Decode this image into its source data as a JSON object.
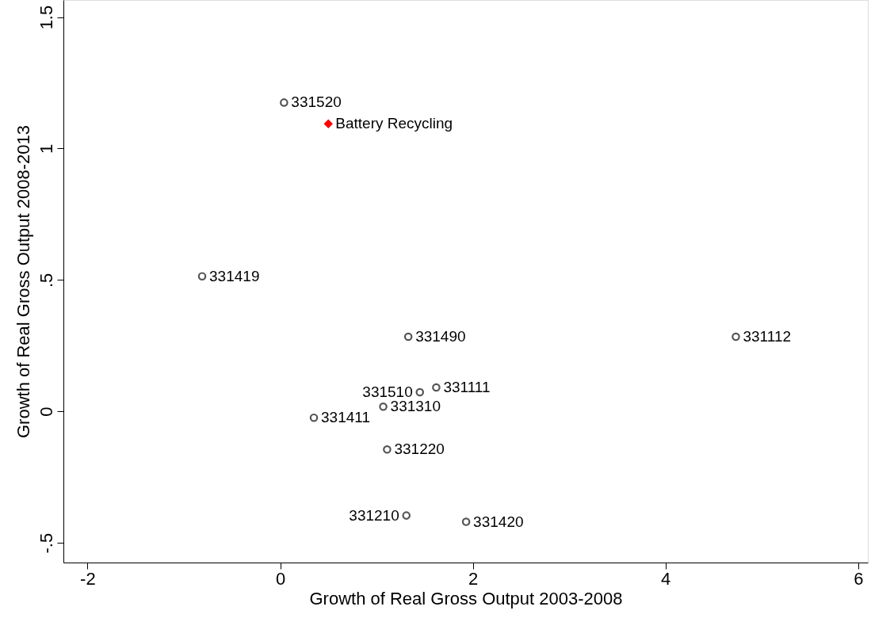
{
  "chart_data": {
    "type": "scatter",
    "xlabel": "Growth of Real Gross Output 2003-2008",
    "ylabel": "Growth of Real Gross Output 2008-2013",
    "xlim": [
      -2.25,
      6.1
    ],
    "ylim": [
      -0.575,
      1.565
    ],
    "xticks": [
      -2,
      0,
      2,
      4,
      6
    ],
    "yticks": [
      {
        "value": -0.5,
        "label": "-.5"
      },
      0,
      {
        "value": 0.5,
        "label": ".5"
      },
      1,
      {
        "value": 1.5,
        "label": "1.5"
      }
    ],
    "grid": false,
    "series": [
      {
        "color": "#555555",
        "marker": "circle",
        "x": [
          0.04,
          -0.81,
          1.33,
          4.73,
          1.45,
          1.62,
          1.07,
          0.35,
          1.11,
          1.31,
          1.93
        ],
        "values": [
          1.175,
          0.514,
          0.284,
          0.284,
          0.073,
          0.091,
          0.018,
          -0.024,
          -0.145,
          -0.396,
          -0.42
        ]
      },
      {
        "color": "#ff0000",
        "marker": "diamond",
        "x": [
          0.5
        ],
        "values": [
          1.094
        ]
      }
    ],
    "annotations": [
      {
        "text": "331520",
        "x": 0.04,
        "y": 1.175
      },
      {
        "text": "Battery Recycling",
        "x": 0.5,
        "y": 1.094
      },
      {
        "text": "331419",
        "x": -0.81,
        "y": 0.514
      },
      {
        "text": "331490",
        "x": 1.33,
        "y": 0.284
      },
      {
        "text": "331112",
        "x": 4.73,
        "y": 0.284
      },
      {
        "text": "331510",
        "x": 1.45,
        "y": 0.073
      },
      {
        "text": "331111",
        "x": 1.62,
        "y": 0.091
      },
      {
        "text": "331310",
        "x": 1.07,
        "y": 0.018
      },
      {
        "text": "331411",
        "x": 0.35,
        "y": -0.024
      },
      {
        "text": "331220",
        "x": 1.11,
        "y": -0.145
      },
      {
        "text": "331210",
        "x": 1.31,
        "y": -0.396
      },
      {
        "text": "331420",
        "x": 1.93,
        "y": -0.42
      }
    ]
  }
}
